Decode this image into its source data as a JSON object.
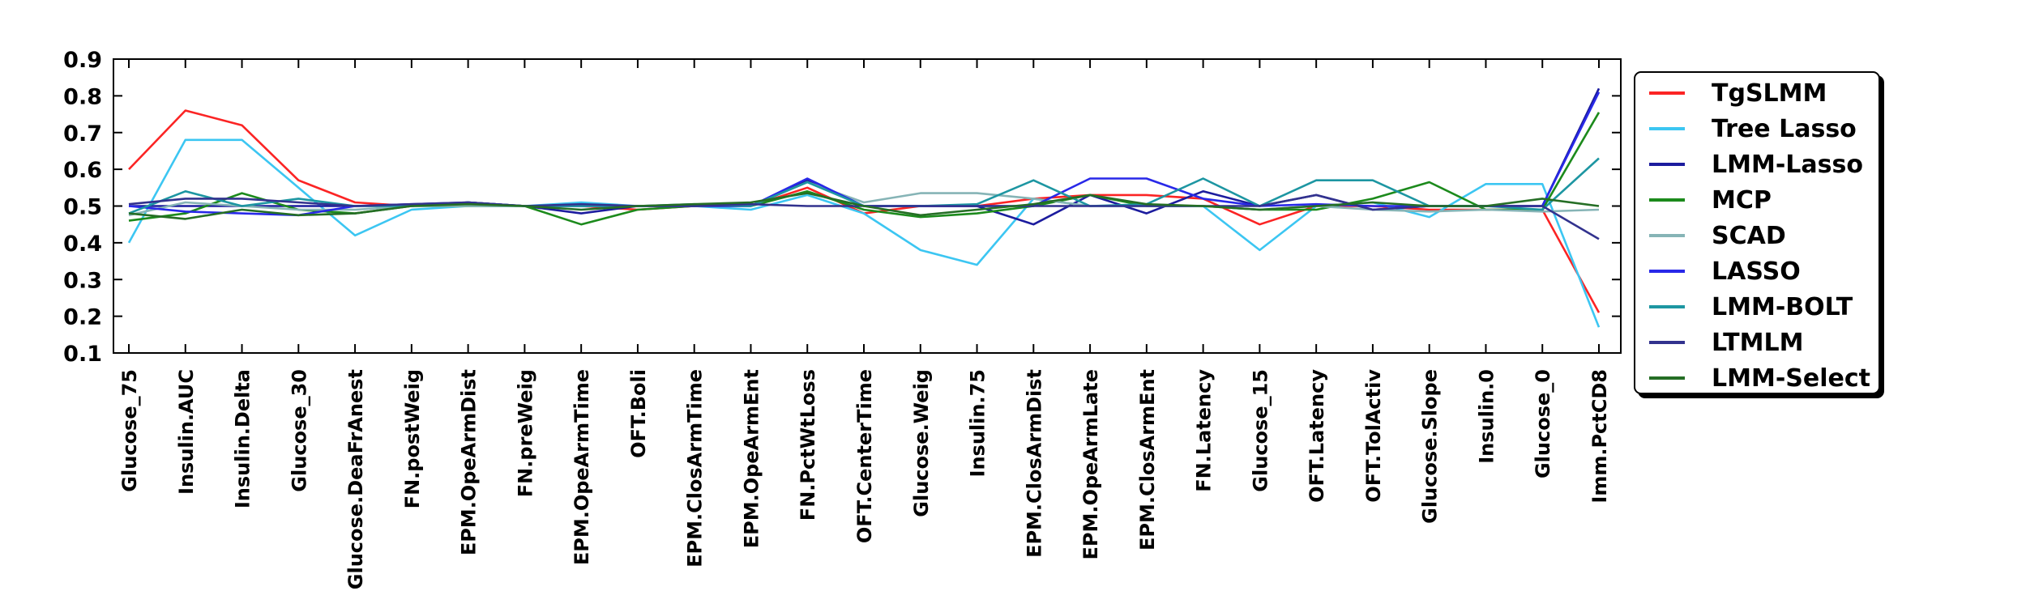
{
  "figure": {
    "background": "#ffffff",
    "axis_color": "#000000"
  },
  "chart_data": {
    "type": "line",
    "title": "",
    "xlabel": "",
    "ylabel": "",
    "ylim": [
      0.1,
      0.9
    ],
    "yticks": [
      "0.1",
      "0.2",
      "0.3",
      "0.4",
      "0.5",
      "0.6",
      "0.7",
      "0.8",
      "0.9"
    ],
    "grid": false,
    "legend_position": "outside-right",
    "x_tick_rotation": 90,
    "categories": [
      "Glucose_75",
      "Insulin.AUC",
      "Insulin.Delta",
      "Glucose_30",
      "Glucose.DeaFrAnest",
      "FN.postWeig",
      "EPM.OpeArmDist",
      "FN.preWeig",
      "EPM.OpeArmTime",
      "OFT.Boli",
      "EPM.ClosArmTime",
      "EPM.OpeArmEnt",
      "FN.PctWtLoss",
      "OFT.CenterTime",
      "Glucose.Weig",
      "Insulin.75",
      "EPM.ClosArmDist",
      "EPM.OpeArmLate",
      "EPM.ClosArmEnt",
      "FN.Latency",
      "Glucose_15",
      "OFT.Latency",
      "OFT.TolActiv",
      "Glucose.Slope",
      "Insulin.0",
      "Glucose_0",
      "Imm.PctCD8"
    ],
    "series": [
      {
        "name": "TgSLMM",
        "color": "#fb2424",
        "values": [
          0.6,
          0.76,
          0.72,
          0.57,
          0.51,
          0.5,
          0.51,
          0.5,
          0.5,
          0.49,
          0.5,
          0.5,
          0.55,
          0.48,
          0.5,
          0.5,
          0.52,
          0.53,
          0.53,
          0.52,
          0.45,
          0.5,
          0.5,
          0.49,
          0.49,
          0.49,
          0.21
        ]
      },
      {
        "name": "Tree Lasso",
        "color": "#3cc6f2",
        "values": [
          0.4,
          0.68,
          0.68,
          0.55,
          0.42,
          0.49,
          0.5,
          0.5,
          0.51,
          0.5,
          0.5,
          0.49,
          0.53,
          0.48,
          0.38,
          0.34,
          0.52,
          0.5,
          0.5,
          0.5,
          0.38,
          0.5,
          0.51,
          0.47,
          0.56,
          0.56,
          0.17
        ]
      },
      {
        "name": "LMM-Lasso",
        "color": "#1c1c9e",
        "values": [
          0.5,
          0.5,
          0.5,
          0.5,
          0.5,
          0.5,
          0.51,
          0.5,
          0.48,
          0.5,
          0.5,
          0.5,
          0.57,
          0.5,
          0.5,
          0.5,
          0.45,
          0.53,
          0.48,
          0.54,
          0.5,
          0.53,
          0.49,
          0.5,
          0.5,
          0.5,
          0.82
        ]
      },
      {
        "name": "MCP",
        "color": "#1c8a1c",
        "values": [
          0.46,
          0.48,
          0.535,
          0.49,
          0.48,
          0.5,
          0.5,
          0.5,
          0.45,
          0.49,
          0.5,
          0.5,
          0.54,
          0.49,
          0.47,
          0.48,
          0.5,
          0.53,
          0.5,
          0.5,
          0.49,
          0.49,
          0.52,
          0.565,
          0.49,
          0.49,
          0.755
        ]
      },
      {
        "name": "SCAD",
        "color": "#86b4b6",
        "values": [
          0.475,
          0.51,
          0.5,
          0.49,
          0.49,
          0.5,
          0.5,
          0.5,
          0.5,
          0.5,
          0.5,
          0.5,
          0.565,
          0.51,
          0.535,
          0.535,
          0.52,
          0.5,
          0.5,
          0.5,
          0.49,
          0.5,
          0.49,
          0.485,
          0.49,
          0.485,
          0.49
        ]
      },
      {
        "name": "LASSO",
        "color": "#2828e8",
        "values": [
          0.5,
          0.485,
          0.48,
          0.475,
          0.5,
          0.505,
          0.51,
          0.5,
          0.5,
          0.5,
          0.5,
          0.5,
          0.575,
          0.5,
          0.5,
          0.5,
          0.5,
          0.575,
          0.575,
          0.52,
          0.5,
          0.505,
          0.5,
          0.5,
          0.5,
          0.5,
          0.81
        ]
      },
      {
        "name": "LMM-BOLT",
        "color": "#1d96a2",
        "values": [
          0.48,
          0.54,
          0.5,
          0.52,
          0.5,
          0.5,
          0.51,
          0.5,
          0.5,
          0.5,
          0.505,
          0.5,
          0.565,
          0.5,
          0.5,
          0.505,
          0.57,
          0.5,
          0.505,
          0.575,
          0.5,
          0.57,
          0.57,
          0.5,
          0.5,
          0.49,
          0.63
        ]
      },
      {
        "name": "LTMLM",
        "color": "#32328e",
        "values": [
          0.505,
          0.52,
          0.52,
          0.51,
          0.5,
          0.505,
          0.51,
          0.5,
          0.505,
          0.5,
          0.5,
          0.505,
          0.5,
          0.5,
          0.5,
          0.5,
          0.5,
          0.5,
          0.5,
          0.5,
          0.5,
          0.53,
          0.49,
          0.5,
          0.5,
          0.5,
          0.41
        ]
      },
      {
        "name": "LMM-Select",
        "color": "#256e25",
        "values": [
          0.48,
          0.465,
          0.49,
          0.475,
          0.48,
          0.5,
          0.505,
          0.5,
          0.49,
          0.5,
          0.505,
          0.51,
          0.535,
          0.5,
          0.475,
          0.49,
          0.505,
          0.53,
          0.505,
          0.5,
          0.49,
          0.5,
          0.51,
          0.5,
          0.5,
          0.52,
          0.5
        ]
      }
    ]
  }
}
